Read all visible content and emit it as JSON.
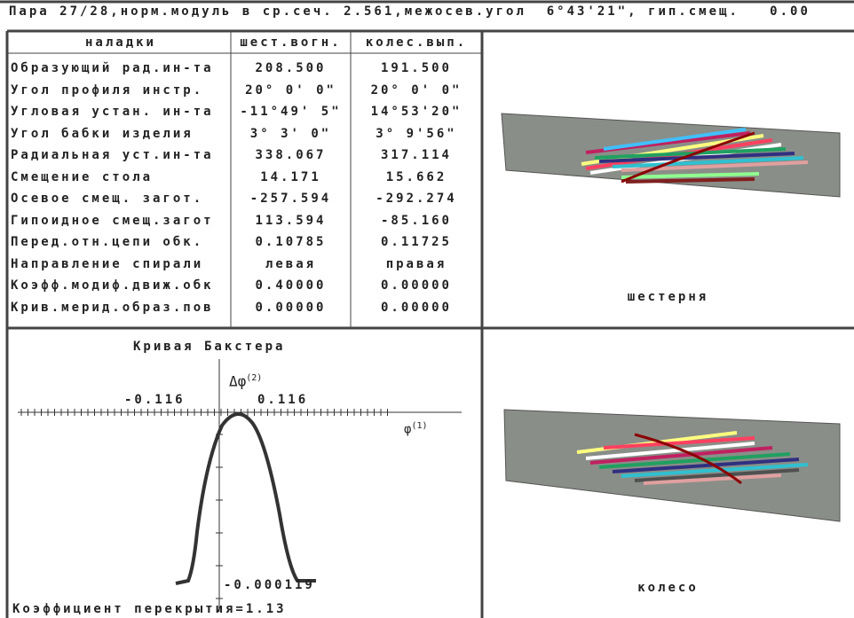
{
  "header": {
    "text": "Пара 27/28,норм.модуль в ср.сеч. 2.561,межосев.угол  6°43'21\", гип.смещ.   0.00"
  },
  "table": {
    "columns": [
      "наладки",
      "шест.вогн.",
      "колес.вып."
    ],
    "rows": [
      [
        "Образующий рад.ин-та",
        "208.500",
        "191.500"
      ],
      [
        "Угол профиля инстр.",
        "20° 0' 0\"",
        "20° 0' 0\""
      ],
      [
        "Угловая устан. ин-та",
        "-11°49' 5\"",
        "14°53'20\""
      ],
      [
        "Угол бабки изделия",
        "3° 3' 0\"",
        "3° 9'56\""
      ],
      [
        "Радиальная уст.ин-та",
        "338.067",
        "317.114"
      ],
      [
        "Смещение стола",
        "14.171",
        "15.662"
      ],
      [
        "Осевое смещ. загот.",
        "-257.594",
        "-292.274"
      ],
      [
        "Гипоидное смещ.загот",
        "113.594",
        "-85.160"
      ],
      [
        "Перед.отн.цепи обк.",
        "0.10785",
        "0.11725"
      ],
      [
        "Направление спирали",
        "левая",
        "правая"
      ],
      [
        "Коэфф.модиф.движ.обк",
        "0.40000",
        "0.00000"
      ],
      [
        "Крив.мерид.образ.пов",
        "0.00000",
        "0.00000"
      ]
    ]
  },
  "panels": {
    "pinion_label": "шестерня",
    "wheel_label": "колесо"
  },
  "baxter": {
    "title": "Кривая Бакстера",
    "y_axis_label": {
      "symbol": "Δφ",
      "superscript": "(2)"
    },
    "x_axis_label": {
      "symbol": "φ",
      "superscript": "(1)"
    },
    "x_tick_left": "-0.116",
    "x_tick_right": "0.116",
    "min_label": "-0.000119",
    "footer": "Коэффициент перекрытия=1.13"
  }
}
